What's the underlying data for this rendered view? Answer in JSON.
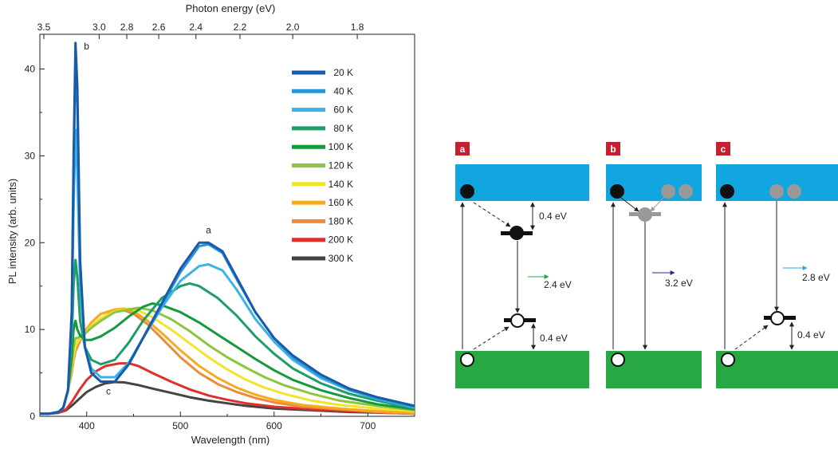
{
  "chart_data": {
    "type": "line",
    "xlabel": "Wavelength (nm)",
    "ylabel": "PL intensity (arb. units)",
    "top_axis_label": "Photon energy (eV)",
    "xlim": [
      350,
      750
    ],
    "ylim": [
      0,
      44
    ],
    "x_ticks": [
      400,
      500,
      600,
      700
    ],
    "y_ticks": [
      0,
      10,
      20,
      30,
      40
    ],
    "top_ticks": [
      3.5,
      3.0,
      2.8,
      2.6,
      2.4,
      2.2,
      2.0,
      1.8
    ],
    "grid": false,
    "legend_position": "top-right",
    "peaks": [
      {
        "label": "a",
        "x": 530,
        "y": 20
      },
      {
        "label": "b",
        "x": 388,
        "y": 43
      },
      {
        "label": "c",
        "x": 430,
        "y": 4
      }
    ],
    "series": [
      {
        "name": "20 K",
        "color": "#1a5aa8",
        "values": [
          [
            350,
            0.3
          ],
          [
            360,
            0.3
          ],
          [
            370,
            0.5
          ],
          [
            375,
            1
          ],
          [
            380,
            3
          ],
          [
            384,
            12
          ],
          [
            386,
            30
          ],
          [
            388,
            43
          ],
          [
            390,
            38
          ],
          [
            393,
            18
          ],
          [
            398,
            8
          ],
          [
            405,
            5
          ],
          [
            415,
            4
          ],
          [
            430,
            4
          ],
          [
            445,
            6
          ],
          [
            460,
            9
          ],
          [
            480,
            13
          ],
          [
            500,
            17
          ],
          [
            520,
            20
          ],
          [
            530,
            20
          ],
          [
            545,
            19
          ],
          [
            560,
            16
          ],
          [
            580,
            12
          ],
          [
            600,
            9
          ],
          [
            620,
            7
          ],
          [
            650,
            4.8
          ],
          [
            680,
            3.2
          ],
          [
            710,
            2.2
          ],
          [
            750,
            1.2
          ]
        ]
      },
      {
        "name": "40 K",
        "color": "#2596d8",
        "values": [
          [
            350,
            0.3
          ],
          [
            360,
            0.3
          ],
          [
            370,
            0.5
          ],
          [
            375,
            1
          ],
          [
            380,
            3
          ],
          [
            384,
            12
          ],
          [
            386,
            28
          ],
          [
            388,
            41
          ],
          [
            390,
            36
          ],
          [
            393,
            17
          ],
          [
            398,
            8
          ],
          [
            405,
            5
          ],
          [
            415,
            4
          ],
          [
            430,
            4
          ],
          [
            445,
            6
          ],
          [
            460,
            9
          ],
          [
            480,
            12.8
          ],
          [
            500,
            16.6
          ],
          [
            520,
            19.6
          ],
          [
            530,
            19.8
          ],
          [
            545,
            18.8
          ],
          [
            560,
            15.8
          ],
          [
            580,
            12
          ],
          [
            600,
            9
          ],
          [
            620,
            6.8
          ],
          [
            650,
            4.6
          ],
          [
            680,
            3.1
          ],
          [
            710,
            2.1
          ],
          [
            750,
            1.1
          ]
        ]
      },
      {
        "name": "60 K",
        "color": "#3bb3e6",
        "values": [
          [
            350,
            0.3
          ],
          [
            360,
            0.3
          ],
          [
            370,
            0.5
          ],
          [
            375,
            1
          ],
          [
            380,
            3
          ],
          [
            384,
            11
          ],
          [
            386,
            24
          ],
          [
            388,
            33
          ],
          [
            390,
            28
          ],
          [
            393,
            15
          ],
          [
            398,
            8
          ],
          [
            405,
            5.5
          ],
          [
            415,
            4.5
          ],
          [
            430,
            4.5
          ],
          [
            445,
            6.2
          ],
          [
            460,
            9
          ],
          [
            480,
            12.5
          ],
          [
            500,
            15.6
          ],
          [
            520,
            17.3
          ],
          [
            530,
            17.5
          ],
          [
            545,
            16.8
          ],
          [
            560,
            14.6
          ],
          [
            580,
            11.2
          ],
          [
            600,
            8.6
          ],
          [
            620,
            6.5
          ],
          [
            650,
            4.4
          ],
          [
            680,
            3
          ],
          [
            710,
            2
          ],
          [
            750,
            1
          ]
        ]
      },
      {
        "name": "80 K",
        "color": "#1e9e66",
        "values": [
          [
            350,
            0.3
          ],
          [
            360,
            0.3
          ],
          [
            370,
            0.5
          ],
          [
            375,
            1
          ],
          [
            380,
            3
          ],
          [
            384,
            9
          ],
          [
            386,
            15
          ],
          [
            388,
            18
          ],
          [
            390,
            16
          ],
          [
            393,
            11
          ],
          [
            398,
            8
          ],
          [
            405,
            6.5
          ],
          [
            415,
            6
          ],
          [
            430,
            6.5
          ],
          [
            445,
            8.5
          ],
          [
            460,
            11
          ],
          [
            480,
            13.6
          ],
          [
            500,
            15
          ],
          [
            510,
            15.3
          ],
          [
            520,
            15
          ],
          [
            540,
            13.6
          ],
          [
            560,
            11.6
          ],
          [
            580,
            9.2
          ],
          [
            600,
            7.2
          ],
          [
            620,
            5.5
          ],
          [
            650,
            3.8
          ],
          [
            680,
            2.6
          ],
          [
            710,
            1.8
          ],
          [
            750,
            0.9
          ]
        ]
      },
      {
        "name": "100 K",
        "color": "#14993c",
        "values": [
          [
            350,
            0.3
          ],
          [
            360,
            0.3
          ],
          [
            370,
            0.5
          ],
          [
            375,
            1
          ],
          [
            380,
            3
          ],
          [
            384,
            7
          ],
          [
            386,
            10
          ],
          [
            388,
            11
          ],
          [
            390,
            10
          ],
          [
            393,
            9.3
          ],
          [
            398,
            8.8
          ],
          [
            405,
            8.8
          ],
          [
            415,
            9.2
          ],
          [
            430,
            10.2
          ],
          [
            445,
            11.5
          ],
          [
            460,
            12.6
          ],
          [
            470,
            13
          ],
          [
            480,
            12.8
          ],
          [
            500,
            12
          ],
          [
            520,
            10.8
          ],
          [
            540,
            9.4
          ],
          [
            560,
            8
          ],
          [
            580,
            6.6
          ],
          [
            600,
            5.3
          ],
          [
            620,
            4.2
          ],
          [
            650,
            3
          ],
          [
            680,
            2.1
          ],
          [
            710,
            1.4
          ],
          [
            750,
            0.8
          ]
        ]
      },
      {
        "name": "120 K",
        "color": "#8cc63f",
        "values": [
          [
            350,
            0.3
          ],
          [
            360,
            0.3
          ],
          [
            370,
            0.5
          ],
          [
            375,
            1
          ],
          [
            380,
            3
          ],
          [
            384,
            6
          ],
          [
            386,
            8
          ],
          [
            388,
            9
          ],
          [
            390,
            9
          ],
          [
            393,
            9.2
          ],
          [
            398,
            9.5
          ],
          [
            405,
            10.2
          ],
          [
            415,
            11
          ],
          [
            430,
            12
          ],
          [
            445,
            12.3
          ],
          [
            455,
            12.5
          ],
          [
            470,
            12.2
          ],
          [
            490,
            11.2
          ],
          [
            510,
            9.8
          ],
          [
            530,
            8.2
          ],
          [
            550,
            6.8
          ],
          [
            570,
            5.6
          ],
          [
            590,
            4.5
          ],
          [
            610,
            3.6
          ],
          [
            640,
            2.6
          ],
          [
            670,
            1.8
          ],
          [
            710,
            1.2
          ],
          [
            750,
            0.7
          ]
        ]
      },
      {
        "name": "140 K",
        "color": "#f2e32c",
        "values": [
          [
            350,
            0.3
          ],
          [
            360,
            0.3
          ],
          [
            370,
            0.5
          ],
          [
            375,
            1
          ],
          [
            380,
            3
          ],
          [
            384,
            5.5
          ],
          [
            386,
            7
          ],
          [
            388,
            8
          ],
          [
            390,
            8.5
          ],
          [
            395,
            9.2
          ],
          [
            405,
            10.4
          ],
          [
            415,
            11.3
          ],
          [
            430,
            12.1
          ],
          [
            445,
            12.4
          ],
          [
            455,
            12.2
          ],
          [
            470,
            11.4
          ],
          [
            490,
            10
          ],
          [
            510,
            8.4
          ],
          [
            530,
            6.8
          ],
          [
            550,
            5.4
          ],
          [
            570,
            4.2
          ],
          [
            590,
            3.3
          ],
          [
            610,
            2.6
          ],
          [
            640,
            1.8
          ],
          [
            670,
            1.3
          ],
          [
            710,
            0.9
          ],
          [
            750,
            0.6
          ]
        ]
      },
      {
        "name": "160 K",
        "color": "#f6ab1c",
        "values": [
          [
            350,
            0.3
          ],
          [
            360,
            0.3
          ],
          [
            370,
            0.5
          ],
          [
            375,
            1
          ],
          [
            380,
            3
          ],
          [
            384,
            5.5
          ],
          [
            386,
            7
          ],
          [
            388,
            8
          ],
          [
            390,
            8.5
          ],
          [
            395,
            9.4
          ],
          [
            405,
            10.8
          ],
          [
            415,
            11.8
          ],
          [
            430,
            12.3
          ],
          [
            440,
            12.4
          ],
          [
            450,
            12.1
          ],
          [
            465,
            11
          ],
          [
            480,
            9.6
          ],
          [
            500,
            7.6
          ],
          [
            520,
            5.8
          ],
          [
            540,
            4.4
          ],
          [
            560,
            3.3
          ],
          [
            580,
            2.5
          ],
          [
            600,
            1.9
          ],
          [
            630,
            1.3
          ],
          [
            670,
            0.9
          ],
          [
            710,
            0.6
          ],
          [
            750,
            0.4
          ]
        ]
      },
      {
        "name": "180 K",
        "color": "#ee8a3a",
        "values": [
          [
            350,
            0.3
          ],
          [
            360,
            0.3
          ],
          [
            370,
            0.5
          ],
          [
            375,
            1
          ],
          [
            380,
            3
          ],
          [
            384,
            5
          ],
          [
            386,
            6.5
          ],
          [
            388,
            7.5
          ],
          [
            390,
            8
          ],
          [
            395,
            9.2
          ],
          [
            405,
            10.8
          ],
          [
            415,
            11.8
          ],
          [
            430,
            12.2
          ],
          [
            440,
            12.2
          ],
          [
            450,
            11.8
          ],
          [
            465,
            10.6
          ],
          [
            480,
            9
          ],
          [
            500,
            6.8
          ],
          [
            520,
            5
          ],
          [
            540,
            3.7
          ],
          [
            560,
            2.8
          ],
          [
            580,
            2.1
          ],
          [
            600,
            1.6
          ],
          [
            630,
            1.1
          ],
          [
            670,
            0.8
          ],
          [
            710,
            0.5
          ],
          [
            750,
            0.3
          ]
        ]
      },
      {
        "name": "200 K",
        "color": "#e0302e",
        "values": [
          [
            350,
            0.3
          ],
          [
            360,
            0.3
          ],
          [
            370,
            0.4
          ],
          [
            378,
            0.8
          ],
          [
            385,
            1.8
          ],
          [
            392,
            3
          ],
          [
            400,
            4.2
          ],
          [
            410,
            5.2
          ],
          [
            420,
            5.8
          ],
          [
            435,
            6.1
          ],
          [
            445,
            6.1
          ],
          [
            455,
            5.8
          ],
          [
            470,
            5
          ],
          [
            490,
            4
          ],
          [
            510,
            3.1
          ],
          [
            530,
            2.4
          ],
          [
            550,
            1.9
          ],
          [
            570,
            1.5
          ],
          [
            600,
            1.1
          ],
          [
            640,
            0.8
          ],
          [
            680,
            0.6
          ],
          [
            720,
            0.4
          ],
          [
            750,
            0.3
          ]
        ]
      },
      {
        "name": "300 K",
        "color": "#444444",
        "values": [
          [
            350,
            0.3
          ],
          [
            360,
            0.3
          ],
          [
            370,
            0.4
          ],
          [
            378,
            0.7
          ],
          [
            385,
            1.3
          ],
          [
            392,
            2
          ],
          [
            400,
            2.8
          ],
          [
            410,
            3.4
          ],
          [
            420,
            3.8
          ],
          [
            430,
            3.95
          ],
          [
            440,
            3.9
          ],
          [
            455,
            3.6
          ],
          [
            470,
            3.2
          ],
          [
            490,
            2.7
          ],
          [
            510,
            2.2
          ],
          [
            530,
            1.8
          ],
          [
            550,
            1.5
          ],
          [
            570,
            1.2
          ],
          [
            600,
            0.9
          ],
          [
            640,
            0.7
          ],
          [
            680,
            0.5
          ],
          [
            720,
            0.4
          ],
          [
            750,
            0.3
          ]
        ]
      }
    ]
  },
  "diagram": {
    "conduction_color": "#12a6e0",
    "valence_color": "#27a843",
    "label_bg": "#c4202f",
    "panels": [
      {
        "label": "a",
        "trap_energy_top": "0.4 eV",
        "emission": "2.4 eV",
        "trap_energy_bottom": "0.4 eV",
        "arrow_color": "#27a843"
      },
      {
        "label": "b",
        "emission": "3.2 eV",
        "arrow_color": "#2b2b8a"
      },
      {
        "label": "c",
        "emission": "2.8 eV",
        "trap_energy_bottom": "0.4 eV",
        "arrow_color": "#2aa5e0"
      }
    ]
  }
}
